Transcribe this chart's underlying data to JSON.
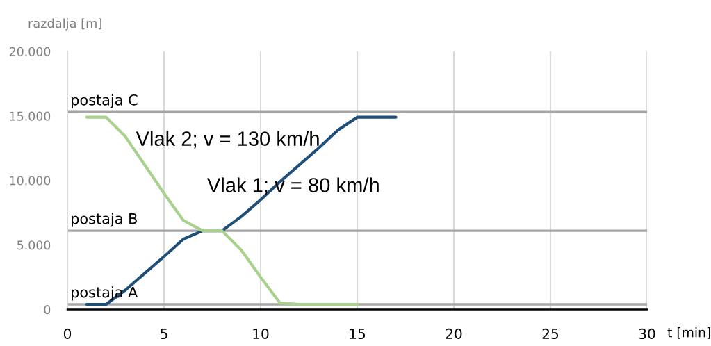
{
  "chart_data": {
    "type": "line",
    "xlabel": "t [min]",
    "ylabel": "razdalja [m]",
    "xlim": [
      0,
      30
    ],
    "xticks": [
      0,
      5,
      10,
      15,
      20,
      25,
      30
    ],
    "ylim": [
      0,
      20000
    ],
    "yticks": [
      0,
      {
        "value": 5000,
        "label": "5.000"
      },
      {
        "value": 10000,
        "label": "10.000"
      },
      {
        "value": 15000,
        "label": "15.000"
      },
      {
        "value": 20000,
        "label": "20.000"
      }
    ],
    "grid": "x",
    "legend": false,
    "marker": "none",
    "line_style": "solid",
    "series": [
      {
        "name": "Vlak 1; v = 80 km/h",
        "color": "#1f4e79",
        "x": [
          1,
          2,
          3,
          4,
          5,
          6,
          7,
          8,
          9,
          10,
          11,
          12,
          13,
          14,
          15,
          16,
          17
        ],
        "values": [
          400,
          400,
          1500,
          2800,
          4100,
          5450,
          6100,
          6100,
          7200,
          8500,
          9900,
          11200,
          12500,
          13900,
          14900,
          14900,
          14900
        ]
      },
      {
        "name": "Vlak 2; v = 130 km/h",
        "color": "#a9d18e",
        "x": [
          1,
          2,
          3,
          4,
          5,
          6,
          7,
          8,
          9,
          10,
          11,
          12,
          13,
          14,
          15
        ],
        "values": [
          14900,
          14900,
          13400,
          11200,
          9000,
          6900,
          6100,
          6100,
          4600,
          2500,
          500,
          400,
          400,
          400,
          400
        ]
      }
    ],
    "ref_lines": [
      {
        "axis": "y",
        "value": 400,
        "label": "postaja A",
        "color": "#a6a6a6"
      },
      {
        "axis": "y",
        "value": 6100,
        "label": "postaja B",
        "color": "#a6a6a6"
      },
      {
        "axis": "y",
        "value": 15300,
        "label": "postaja C",
        "color": "#a6a6a6"
      }
    ]
  }
}
